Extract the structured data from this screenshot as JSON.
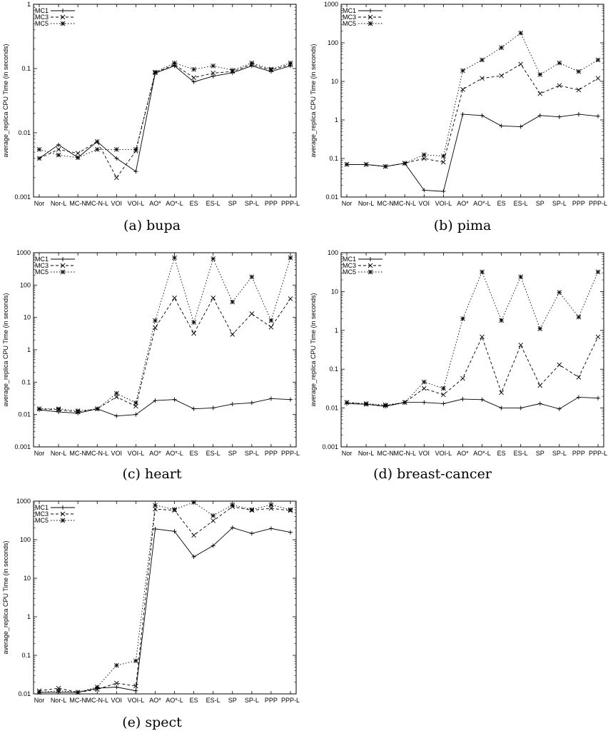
{
  "figure": {
    "captions": [
      "(a) bupa",
      "(b) pima",
      "(c) heart",
      "(d) breast-cancer",
      "(e) spect"
    ]
  },
  "chart_data": [
    {
      "type": "line",
      "caption": "(a) bupa",
      "ylabel": "average_replica CPU Time (in seconds)",
      "yscale": "log",
      "ylim": [
        0.001,
        1
      ],
      "yticks": [
        "0.001",
        "0.01",
        "0.1",
        "1"
      ],
      "categories": [
        "Nor",
        "Nor-L",
        "MC-N",
        "MC-N-L",
        "VOI",
        "VOI-L",
        "AO*",
        "AO*-L",
        "ES",
        "ES-L",
        "SP",
        "SP-L",
        "PPP",
        "PPP-L"
      ],
      "legend_position": "top-left",
      "series": [
        {
          "name": "MC1",
          "style": "solid",
          "values": [
            0.004,
            0.0065,
            0.0041,
            0.0073,
            0.004,
            0.0025,
            0.085,
            0.11,
            0.062,
            0.076,
            0.086,
            0.11,
            0.09,
            0.11
          ]
        },
        {
          "name": "MC3",
          "style": "dashed",
          "values": [
            0.004,
            0.0055,
            0.0048,
            0.0073,
            0.002,
            0.0052,
            0.086,
            0.115,
            0.072,
            0.085,
            0.09,
            0.115,
            0.095,
            0.115
          ]
        },
        {
          "name": "MC5",
          "style": "dotted",
          "values": [
            0.0055,
            0.0045,
            0.0041,
            0.0055,
            0.0055,
            0.0055,
            0.088,
            0.122,
            0.097,
            0.11,
            0.094,
            0.122,
            0.098,
            0.122
          ]
        }
      ]
    },
    {
      "type": "line",
      "caption": "(b) pima",
      "ylabel": "average_replica CPU Time (in seconds)",
      "yscale": "log",
      "ylim": [
        0.01,
        1000
      ],
      "yticks": [
        "0.01",
        "0.1",
        "1",
        "10",
        "100",
        "1000"
      ],
      "categories": [
        "Nor",
        "Nor-L",
        "MC-N",
        "MC-N-L",
        "VOI",
        "VOI-L",
        "AO*",
        "AO*-L",
        "ES",
        "ES-L",
        "SP",
        "SP-L",
        "PPP",
        "PPP-L"
      ],
      "legend_position": "top-left",
      "series": [
        {
          "name": "MC1",
          "style": "solid",
          "values": [
            0.07,
            0.07,
            0.062,
            0.075,
            0.015,
            0.014,
            1.4,
            1.3,
            0.7,
            0.67,
            1.3,
            1.2,
            1.4,
            1.25
          ]
        },
        {
          "name": "MC3",
          "style": "dashed",
          "values": [
            0.07,
            0.07,
            0.062,
            0.075,
            0.1,
            0.08,
            6.2,
            12,
            14,
            28,
            4.8,
            7.8,
            6,
            12
          ]
        },
        {
          "name": "MC5",
          "style": "dotted",
          "values": [
            0.07,
            0.07,
            0.062,
            0.075,
            0.125,
            0.115,
            19,
            36,
            75,
            180,
            15,
            30,
            18,
            36
          ]
        }
      ]
    },
    {
      "type": "line",
      "caption": "(c) heart",
      "ylabel": "average_replica CPU Time (in seconds)",
      "yscale": "log",
      "ylim": [
        0.001,
        1000
      ],
      "yticks": [
        "0.001",
        "0.01",
        "0.1",
        "1",
        "10",
        "100",
        "1000"
      ],
      "categories": [
        "Nor",
        "Nor-L",
        "MC-N",
        "MC-N-L",
        "VOI",
        "VOI-L",
        "AO*",
        "AO*-L",
        "ES",
        "ES-L",
        "SP",
        "SP-L",
        "PPP",
        "PPP-L"
      ],
      "legend_position": "top-left",
      "series": [
        {
          "name": "MC1",
          "style": "solid",
          "values": [
            0.014,
            0.012,
            0.011,
            0.015,
            0.009,
            0.01,
            0.027,
            0.029,
            0.015,
            0.016,
            0.021,
            0.023,
            0.031,
            0.029
          ]
        },
        {
          "name": "MC3",
          "style": "dashed",
          "values": [
            0.015,
            0.014,
            0.012,
            0.015,
            0.035,
            0.018,
            4.8,
            40,
            3.2,
            40,
            3,
            13,
            5,
            38
          ]
        },
        {
          "name": "MC5",
          "style": "dotted",
          "values": [
            0.015,
            0.015,
            0.013,
            0.015,
            0.045,
            0.023,
            8,
            700,
            7,
            650,
            30,
            180,
            8,
            700
          ]
        }
      ]
    },
    {
      "type": "line",
      "caption": "(d) breast-cancer",
      "ylabel": "average_replica CPU Time (in seconds)",
      "yscale": "log",
      "ylim": [
        0.001,
        100
      ],
      "yticks": [
        "0.001",
        "0.01",
        "0.1",
        "1",
        "10",
        "100"
      ],
      "categories": [
        "Nor",
        "Nor-L",
        "MC-N",
        "MC-N-L",
        "VOI",
        "VOI-L",
        "AO*",
        "AO*-L",
        "ES",
        "ES-L",
        "SP",
        "SP-L",
        "PPP",
        "PPP-L"
      ],
      "legend_position": "top-left",
      "series": [
        {
          "name": "MC1",
          "style": "solid",
          "values": [
            0.013,
            0.0125,
            0.011,
            0.014,
            0.014,
            0.013,
            0.017,
            0.0165,
            0.01,
            0.01,
            0.013,
            0.0095,
            0.019,
            0.018
          ]
        },
        {
          "name": "MC3",
          "style": "dashed",
          "values": [
            0.014,
            0.0125,
            0.0115,
            0.014,
            0.032,
            0.022,
            0.058,
            0.68,
            0.025,
            0.42,
            0.038,
            0.13,
            0.062,
            0.68
          ]
        },
        {
          "name": "MC5",
          "style": "dotted",
          "values": [
            0.014,
            0.013,
            0.012,
            0.014,
            0.047,
            0.032,
            2,
            32,
            1.8,
            24,
            1.1,
            9.5,
            2.2,
            32
          ]
        }
      ]
    },
    {
      "type": "line",
      "caption": "(e) spect",
      "ylabel": "average_replica CPU Time (in seconds)",
      "yscale": "log",
      "ylim": [
        0.01,
        1000
      ],
      "yticks": [
        "0.01",
        "0.1",
        "1",
        "10",
        "100",
        "1000"
      ],
      "categories": [
        "Nor",
        "Nor-L",
        "MC-N",
        "MC-N-L",
        "VOI",
        "VOI-L",
        "AO*",
        "AO*-L",
        "ES",
        "ES-L",
        "SP",
        "SP-L",
        "PPP",
        "PPP-L"
      ],
      "legend_position": "top-left",
      "series": [
        {
          "name": "MC1",
          "style": "solid",
          "values": [
            0.011,
            0.011,
            0.011,
            0.014,
            0.015,
            0.012,
            190,
            165,
            36,
            70,
            205,
            145,
            195,
            155
          ]
        },
        {
          "name": "MC3",
          "style": "dashed",
          "values": [
            0.012,
            0.014,
            0.011,
            0.013,
            0.019,
            0.016,
            620,
            580,
            130,
            310,
            720,
            580,
            650,
            570
          ]
        },
        {
          "name": "MC5",
          "style": "dotted",
          "values": [
            0.011,
            0.012,
            0.011,
            0.015,
            0.055,
            0.072,
            780,
            610,
            930,
            420,
            800,
            600,
            800,
            600
          ]
        }
      ]
    }
  ]
}
